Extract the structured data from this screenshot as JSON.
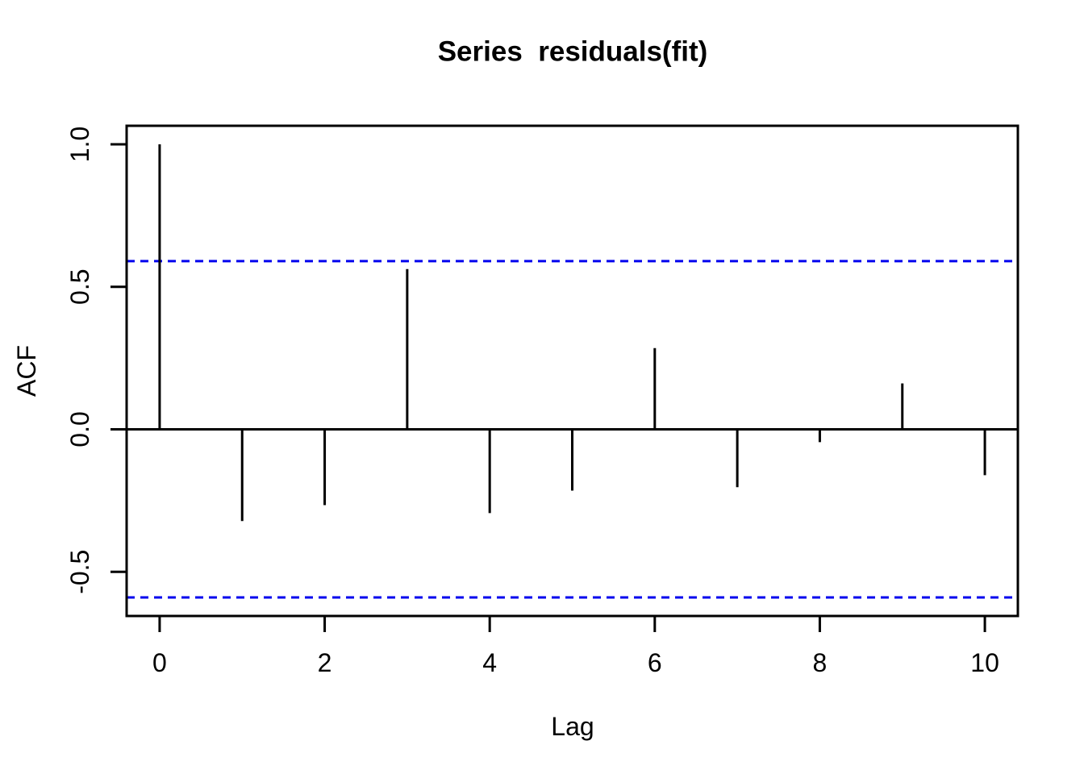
{
  "chart_data": {
    "type": "bar",
    "variant": "acf-stem-plot",
    "title": "Series  residuals(fit)",
    "xlabel": "Lag",
    "ylabel": "ACF",
    "x": [
      0,
      1,
      2,
      3,
      4,
      5,
      6,
      7,
      8,
      9,
      10
    ],
    "values": [
      1.0,
      -0.322,
      -0.266,
      0.562,
      -0.294,
      -0.215,
      0.285,
      -0.203,
      -0.045,
      0.161,
      -0.161
    ],
    "confidence_bands": {
      "upper": 0.59,
      "lower": -0.59,
      "style": "dashed"
    },
    "xlim": [
      -0.4,
      10.4
    ],
    "ylim": [
      -0.655,
      1.065
    ],
    "x_ticks": [
      0,
      2,
      4,
      6,
      8,
      10
    ],
    "x_tick_labels": [
      "0",
      "2",
      "4",
      "6",
      "8",
      "10"
    ],
    "y_ticks": [
      -0.5,
      0.0,
      0.5,
      1.0
    ],
    "y_tick_labels": [
      "-0.5",
      "0.0",
      "0.5",
      "1.0"
    ],
    "grid": false,
    "legend": false,
    "colors": {
      "spike": "#000000",
      "axis": "#000000",
      "confidence": "#0000EE",
      "background": "#FFFFFF",
      "text": "#000000"
    }
  }
}
